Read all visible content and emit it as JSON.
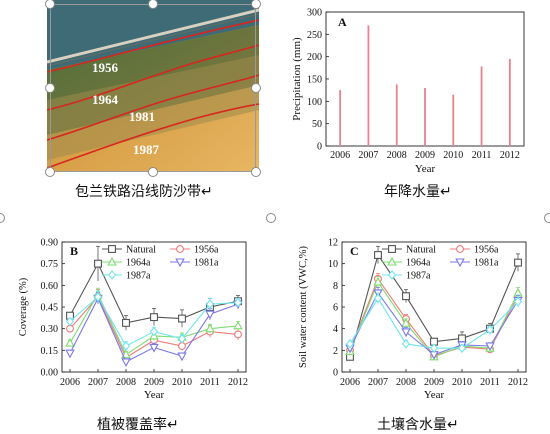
{
  "photo": {
    "year_labels": [
      "1956",
      "1964",
      "1981",
      "1987"
    ],
    "colors": {
      "sky": "#3e6b76",
      "green": "#5f7d3a",
      "sand": "#d9a24a",
      "line": "#d8261e",
      "label": "#ffffff"
    }
  },
  "captions": {
    "photo": "包兰铁路沿线防沙带↵",
    "precip": "年降水量↵",
    "coverage": "植被覆盖率↵",
    "soil": "土壤含水量↵"
  },
  "chart_data": [
    {
      "id": "A",
      "type": "bar",
      "panel_label": "A",
      "categories": [
        "2006",
        "2007",
        "2008",
        "2009",
        "2010",
        "2011",
        "2012"
      ],
      "values": [
        125,
        270,
        138,
        130,
        115,
        178,
        195
      ],
      "xlabel": "Year",
      "ylabel": "Precipitation (mm)",
      "ylim": [
        0,
        300
      ],
      "yticks": [
        "0",
        "50",
        "100",
        "150",
        "200",
        "250",
        "300"
      ],
      "bar_color": "#e8828c",
      "grid": false
    },
    {
      "id": "B",
      "type": "line",
      "panel_label": "B",
      "categories": [
        "2006",
        "2007",
        "2008",
        "2009",
        "2010",
        "2011",
        "2012"
      ],
      "xlabel": "Year",
      "ylabel": "Coverage (%)",
      "ylim": [
        0.0,
        0.9
      ],
      "yticks": [
        "0.00",
        "0.15",
        "0.30",
        "0.45",
        "0.60",
        "0.75",
        "0.90"
      ],
      "legend": "top-right",
      "series": [
        {
          "name": "Natural",
          "color": "#555555",
          "marker": "square",
          "values": [
            0.39,
            0.75,
            0.34,
            0.38,
            0.37,
            0.45,
            0.49
          ],
          "errors": [
            0.02,
            0.12,
            0.05,
            0.06,
            0.06,
            0.06,
            0.04
          ]
        },
        {
          "name": "1956a",
          "color": "#f07a78",
          "marker": "circle",
          "values": [
            0.3,
            0.52,
            0.1,
            0.22,
            0.18,
            0.28,
            0.26
          ],
          "errors": [
            0.02,
            0.05,
            0.02,
            0.03,
            0.03,
            0.04,
            0.04
          ]
        },
        {
          "name": "1964a",
          "color": "#7ddc6e",
          "marker": "triangle-up",
          "values": [
            0.2,
            0.54,
            0.12,
            0.25,
            0.24,
            0.3,
            0.32
          ],
          "errors": [
            0.02,
            0.04,
            0.02,
            0.03,
            0.03,
            0.03,
            0.03
          ]
        },
        {
          "name": "1981a",
          "color": "#7a77e8",
          "marker": "triangle-down",
          "values": [
            0.13,
            0.51,
            0.07,
            0.17,
            0.11,
            0.4,
            0.47
          ],
          "errors": [
            0.02,
            0.04,
            0.02,
            0.03,
            0.02,
            0.04,
            0.03
          ]
        },
        {
          "name": "1987a",
          "color": "#6ee6f0",
          "marker": "diamond",
          "values": [
            0.35,
            0.52,
            0.18,
            0.28,
            0.23,
            0.47,
            0.48
          ],
          "errors": [
            0.02,
            0.04,
            0.03,
            0.03,
            0.03,
            0.04,
            0.03
          ]
        }
      ]
    },
    {
      "id": "C",
      "type": "line",
      "panel_label": "C",
      "categories": [
        "2006",
        "2007",
        "2008",
        "2009",
        "2010",
        "2011",
        "2012"
      ],
      "xlabel": "Year",
      "ylabel": "Soil water content (VWC,%)",
      "ylim": [
        0,
        12
      ],
      "yticks": [
        "0",
        "2",
        "4",
        "6",
        "8",
        "10",
        "12"
      ],
      "legend": "top-right",
      "series": [
        {
          "name": "Natural",
          "color": "#555555",
          "marker": "square",
          "values": [
            1.4,
            10.8,
            7.0,
            2.8,
            3.1,
            4.0,
            10.1
          ],
          "errors": [
            0.2,
            0.8,
            0.6,
            0.2,
            0.6,
            0.5,
            0.8
          ]
        },
        {
          "name": "1956a",
          "color": "#f07a78",
          "marker": "circle",
          "values": [
            2.0,
            8.6,
            4.9,
            1.5,
            2.3,
            2.1,
            7.0
          ],
          "errors": [
            0.2,
            0.5,
            0.4,
            0.2,
            0.3,
            0.3,
            0.5
          ]
        },
        {
          "name": "1964a",
          "color": "#7ddc6e",
          "marker": "triangle-up",
          "values": [
            1.9,
            8.3,
            4.5,
            1.4,
            2.4,
            2.2,
            7.3
          ],
          "errors": [
            0.2,
            0.5,
            0.4,
            0.2,
            0.3,
            0.3,
            0.5
          ]
        },
        {
          "name": "1981a",
          "color": "#7a77e8",
          "marker": "triangle-down",
          "values": [
            2.2,
            7.3,
            3.7,
            1.6,
            2.5,
            2.4,
            6.6
          ],
          "errors": [
            0.2,
            0.5,
            0.4,
            0.2,
            0.3,
            0.3,
            0.5
          ]
        },
        {
          "name": "1987a",
          "color": "#6ee6f0",
          "marker": "diamond",
          "values": [
            2.6,
            6.8,
            2.6,
            2.2,
            2.2,
            3.9,
            6.5
          ],
          "errors": [
            0.2,
            0.5,
            0.3,
            0.2,
            0.3,
            0.3,
            0.5
          ]
        }
      ]
    }
  ]
}
